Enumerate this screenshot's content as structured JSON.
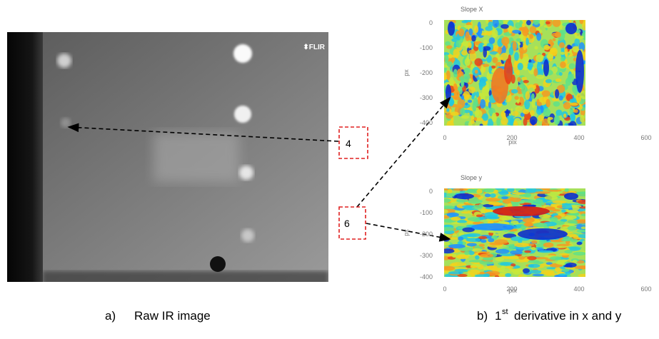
{
  "raw_image": {
    "logo": "⬍FLIR",
    "caption_label": "a)",
    "caption": "Raw IR image"
  },
  "plots": [
    {
      "title": "Slope X",
      "y_label": "px",
      "x_label": "pix",
      "yticks": [
        0,
        -100,
        -200,
        -300,
        -400
      ],
      "xticks": [
        0,
        200,
        400,
        600
      ]
    },
    {
      "title": "Slope y",
      "y_label": "px",
      "x_label": "pix",
      "yticks": [
        0,
        -100,
        -200,
        -300,
        -400
      ],
      "xticks": [
        0,
        200,
        400,
        600
      ]
    }
  ],
  "derivative_caption": {
    "label": "b)",
    "number": "1",
    "superscript": "st",
    "text": "derivative in x and y"
  },
  "callouts": [
    "4",
    "6"
  ]
}
